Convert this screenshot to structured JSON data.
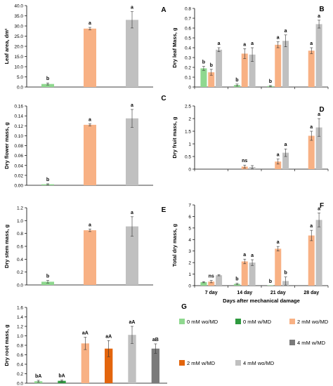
{
  "colors": {
    "light_green": "#8fd88f",
    "dark_green": "#2e9a3e",
    "light_orange": "#f8b184",
    "dark_orange": "#e3650d",
    "light_gray": "#c0c0c0",
    "dark_gray": "#7b7b7b"
  },
  "legend": [
    {
      "label": "0 mM wo/MD",
      "color": "#8fd88f"
    },
    {
      "label": "0 mM w/MD",
      "color": "#2e9a3e"
    },
    {
      "label": "2 mM wo/MD",
      "color": "#f8b184"
    },
    {
      "label": "2 mM w/MD",
      "color": "#e3650d"
    },
    {
      "label": "4 mM wo/MD",
      "color": "#c0c0c0"
    },
    {
      "label": "4 mM w/MD",
      "color": "#7b7b7b"
    }
  ],
  "chart_data": [
    {
      "panel": "A",
      "type": "bar",
      "ylabel": "Leaf area, dm²",
      "ylim": [
        0,
        40
      ],
      "yticks": [
        "0.0",
        "5.0",
        "10.0",
        "15.0",
        "20.0",
        "25.0",
        "30.0",
        "35.0",
        "40.0"
      ],
      "bars": [
        {
          "value": 1.5,
          "err": 0.5,
          "letter": "b",
          "color": "#8fd88f"
        },
        {
          "value": 28.7,
          "err": 0.6,
          "letter": "a",
          "color": "#f8b184"
        },
        {
          "value": 33.0,
          "err": 4.0,
          "letter": "a",
          "color": "#c0c0c0"
        }
      ]
    },
    {
      "panel": "B",
      "type": "bar",
      "ylabel": "Dry leaf Mass, g",
      "ylim": [
        0,
        0.8
      ],
      "yticks": [
        "0",
        "0.1",
        "0.2",
        "0.3",
        "0.4",
        "0.5",
        "0.6",
        "0.7",
        "0.8"
      ],
      "categories": [
        "7 day",
        "14 day",
        "21 day",
        "28 day"
      ],
      "bars": [
        {
          "group": 0,
          "slot": 0,
          "value": 0.19,
          "err": 0.02,
          "letter": "b",
          "color": "#8fd88f"
        },
        {
          "group": 0,
          "slot": 1,
          "value": 0.15,
          "err": 0.03,
          "letter": "b",
          "color": "#f8b184"
        },
        {
          "group": 0,
          "slot": 2,
          "value": 0.38,
          "err": 0.02,
          "letter": "a",
          "color": "#c0c0c0"
        },
        {
          "group": 1,
          "slot": 0,
          "value": 0.02,
          "err": 0.01,
          "letter": "b",
          "color": "#8fd88f"
        },
        {
          "group": 1,
          "slot": 1,
          "value": 0.34,
          "err": 0.05,
          "letter": "a",
          "color": "#f8b184"
        },
        {
          "group": 1,
          "slot": 2,
          "value": 0.33,
          "err": 0.07,
          "letter": "a",
          "color": "#c0c0c0"
        },
        {
          "group": 2,
          "slot": 0,
          "value": 0.01,
          "err": 0.005,
          "letter": "b",
          "color": "#8fd88f"
        },
        {
          "group": 2,
          "slot": 1,
          "value": 0.43,
          "err": 0.03,
          "letter": "a",
          "color": "#f8b184"
        },
        {
          "group": 2,
          "slot": 2,
          "value": 0.47,
          "err": 0.06,
          "letter": "a",
          "color": "#c0c0c0"
        },
        {
          "group": 3,
          "slot": 1,
          "value": 0.37,
          "err": 0.03,
          "letter": "a",
          "color": "#f8b184"
        },
        {
          "group": 3,
          "slot": 2,
          "value": 0.64,
          "err": 0.04,
          "letter": "a",
          "color": "#c0c0c0"
        }
      ]
    },
    {
      "panel": "C",
      "type": "bar",
      "ylabel": "Dry flower mass, g",
      "ylim": [
        0,
        0.16
      ],
      "yticks": [
        "0.00",
        "0.02",
        "0.04",
        "0.06",
        "0.08",
        "0.10",
        "0.12",
        "0.14",
        "0.16"
      ],
      "bars": [
        {
          "value": 0.002,
          "err": 0.001,
          "letter": "b",
          "color": "#8fd88f"
        },
        {
          "value": 0.122,
          "err": 0.002,
          "letter": "a",
          "color": "#f8b184"
        },
        {
          "value": 0.135,
          "err": 0.018,
          "letter": "a",
          "color": "#c0c0c0"
        }
      ]
    },
    {
      "panel": "D",
      "type": "bar",
      "ylabel": "Dry fruit mass, g",
      "ylim": [
        0,
        2.5
      ],
      "yticks": [
        "0",
        "0.5",
        "1",
        "1.5",
        "2",
        "2.5"
      ],
      "categories": [
        "7 day",
        "14 day",
        "21 day",
        "28 day"
      ],
      "bars": [
        {
          "group": 1,
          "slot": 1,
          "value": 0.1,
          "err": 0.06,
          "letter": "ns",
          "color": "#f8b184"
        },
        {
          "group": 1,
          "slot": 2,
          "value": 0.08,
          "err": 0.06,
          "letter": "",
          "color": "#c0c0c0"
        },
        {
          "group": 2,
          "slot": 1,
          "value": 0.3,
          "err": 0.1,
          "letter": "a",
          "color": "#f8b184"
        },
        {
          "group": 2,
          "slot": 2,
          "value": 0.65,
          "err": 0.15,
          "letter": "a",
          "color": "#c0c0c0"
        },
        {
          "group": 3,
          "slot": 1,
          "value": 1.32,
          "err": 0.18,
          "letter": "a",
          "color": "#f8b184"
        },
        {
          "group": 3,
          "slot": 2,
          "value": 1.65,
          "err": 0.35,
          "letter": "a",
          "color": "#c0c0c0"
        }
      ]
    },
    {
      "panel": "E",
      "type": "bar",
      "ylabel": "Dry stem mass, g",
      "ylim": [
        0,
        1.2
      ],
      "yticks": [
        "0.0",
        "0.2",
        "0.4",
        "0.6",
        "0.8",
        "1.0",
        "1.2"
      ],
      "bars": [
        {
          "value": 0.05,
          "err": 0.02,
          "letter": "b",
          "color": "#8fd88f"
        },
        {
          "value": 0.85,
          "err": 0.02,
          "letter": "a",
          "color": "#f8b184"
        },
        {
          "value": 0.91,
          "err": 0.15,
          "letter": "a",
          "color": "#c0c0c0"
        }
      ]
    },
    {
      "panel": "F",
      "type": "bar",
      "ylabel": "Total dry mass, g",
      "xlabel": "Days after mechanical damage",
      "ylim": [
        0,
        7
      ],
      "yticks": [
        "0",
        "1",
        "2",
        "3",
        "4",
        "5",
        "6",
        "7"
      ],
      "categories": [
        "7 day",
        "14 day",
        "21 day",
        "28 day"
      ],
      "bars": [
        {
          "group": 0,
          "slot": 0,
          "value": 0.3,
          "err": 0.05,
          "letter": "",
          "color": "#8fd88f"
        },
        {
          "group": 0,
          "slot": 1,
          "value": 0.35,
          "err": 0.1,
          "letter": "ns",
          "color": "#f8b184"
        },
        {
          "group": 0,
          "slot": 2,
          "value": 0.9,
          "err": 0.05,
          "letter": "",
          "color": "#c0c0c0"
        },
        {
          "group": 1,
          "slot": 0,
          "value": 0.15,
          "err": 0.05,
          "letter": "b",
          "color": "#8fd88f"
        },
        {
          "group": 1,
          "slot": 1,
          "value": 2.1,
          "err": 0.2,
          "letter": "a",
          "color": "#f8b184"
        },
        {
          "group": 1,
          "slot": 2,
          "value": 2.0,
          "err": 0.25,
          "letter": "a",
          "color": "#c0c0c0"
        },
        {
          "group": 2,
          "slot": 0,
          "value": 0.0,
          "err": 0.0,
          "letter": "b",
          "color": "#8fd88f"
        },
        {
          "group": 2,
          "slot": 1,
          "value": 3.2,
          "err": 0.2,
          "letter": "a",
          "color": "#f8b184"
        },
        {
          "group": 2,
          "slot": 2,
          "value": 0.4,
          "err": 0.35,
          "letter": "b",
          "color": "#c0c0c0"
        },
        {
          "group": 3,
          "slot": 1,
          "value": 4.35,
          "err": 0.45,
          "letter": "a",
          "color": "#f8b184"
        },
        {
          "group": 3,
          "slot": 2,
          "value": 5.7,
          "err": 0.6,
          "letter": "a",
          "color": "#c0c0c0"
        }
      ]
    },
    {
      "panel": "G",
      "type": "bar",
      "ylabel": "Dry root mass, g",
      "ylim": [
        0,
        1.6
      ],
      "yticks": [
        "0.0",
        "0.2",
        "0.4",
        "0.6",
        "0.8",
        "1.0",
        "1.2",
        "1.4",
        "1.6"
      ],
      "bars": [
        {
          "value": 0.04,
          "err": 0.02,
          "letter": "bA",
          "color": "#8fd88f"
        },
        {
          "value": 0.05,
          "err": 0.02,
          "letter": "bA",
          "color": "#2e9a3e"
        },
        {
          "value": 0.84,
          "err": 0.13,
          "letter": "aA",
          "color": "#f8b184"
        },
        {
          "value": 0.73,
          "err": 0.17,
          "letter": "aA",
          "color": "#e3650d"
        },
        {
          "value": 1.02,
          "err": 0.18,
          "letter": "aA",
          "color": "#c0c0c0"
        },
        {
          "value": 0.73,
          "err": 0.1,
          "letter": "aB",
          "color": "#7b7b7b"
        }
      ]
    }
  ]
}
